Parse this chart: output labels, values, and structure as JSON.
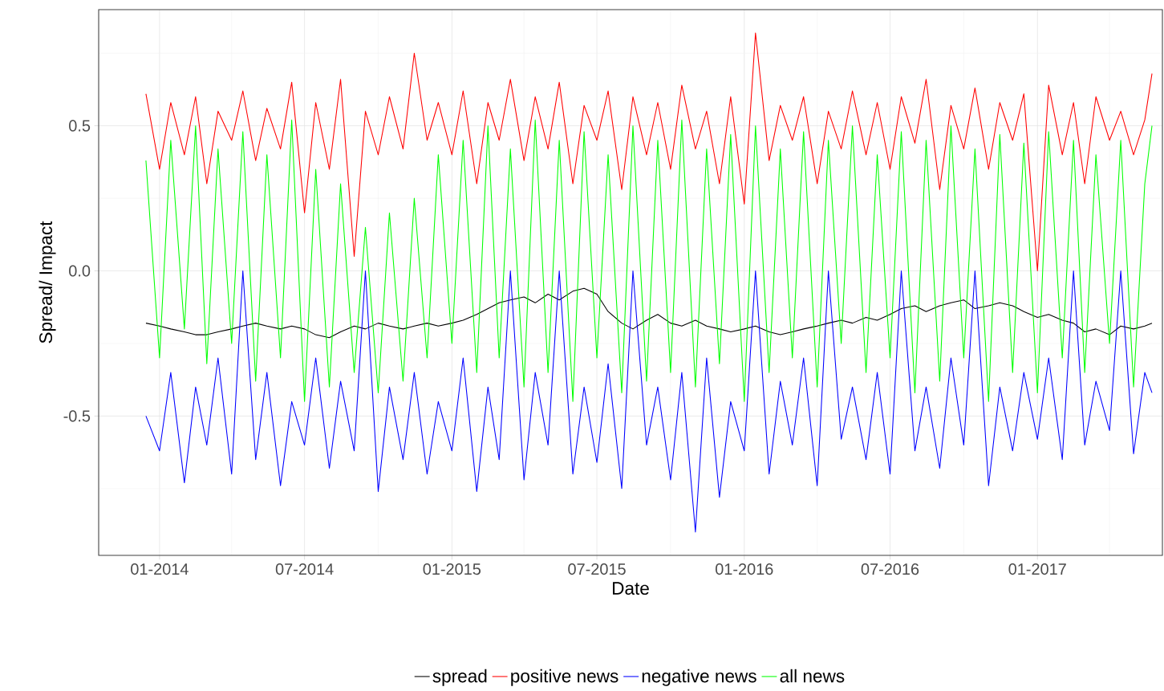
{
  "chart_data": {
    "type": "line",
    "xlabel": "Date",
    "ylabel": "Spread/ Impact",
    "x": [
      "2013-12-15",
      "2014-01-01",
      "2014-01-15",
      "2014-02-01",
      "2014-02-15",
      "2014-03-01",
      "2014-03-15",
      "2014-04-01",
      "2014-04-15",
      "2014-05-01",
      "2014-05-15",
      "2014-06-01",
      "2014-06-15",
      "2014-07-01",
      "2014-07-15",
      "2014-08-01",
      "2014-08-15",
      "2014-09-01",
      "2014-09-15",
      "2014-10-01",
      "2014-10-15",
      "2014-11-01",
      "2014-11-15",
      "2014-12-01",
      "2014-12-15",
      "2015-01-01",
      "2015-01-15",
      "2015-02-01",
      "2015-02-15",
      "2015-03-01",
      "2015-03-15",
      "2015-04-01",
      "2015-04-15",
      "2015-05-01",
      "2015-05-15",
      "2015-06-01",
      "2015-06-15",
      "2015-07-01",
      "2015-07-15",
      "2015-08-01",
      "2015-08-15",
      "2015-09-01",
      "2015-09-15",
      "2015-10-01",
      "2015-10-15",
      "2015-11-01",
      "2015-11-15",
      "2015-12-01",
      "2015-12-15",
      "2016-01-01",
      "2016-01-15",
      "2016-02-01",
      "2016-02-15",
      "2016-03-01",
      "2016-03-15",
      "2016-04-01",
      "2016-04-15",
      "2016-05-01",
      "2016-05-15",
      "2016-06-01",
      "2016-06-15",
      "2016-07-01",
      "2016-07-15",
      "2016-08-01",
      "2016-08-15",
      "2016-09-01",
      "2016-09-15",
      "2016-10-01",
      "2016-10-15",
      "2016-11-01",
      "2016-11-15",
      "2016-12-01",
      "2016-12-15",
      "2017-01-01",
      "2017-01-15",
      "2017-02-01",
      "2017-02-15",
      "2017-03-01",
      "2017-03-15",
      "2017-04-01",
      "2017-04-15",
      "2017-05-01",
      "2017-05-15",
      "2017-05-24"
    ],
    "series": [
      {
        "name": "spread",
        "color": "#000000",
        "values": [
          -0.18,
          -0.19,
          -0.2,
          -0.21,
          -0.22,
          -0.22,
          -0.21,
          -0.2,
          -0.19,
          -0.18,
          -0.19,
          -0.2,
          -0.19,
          -0.2,
          -0.22,
          -0.23,
          -0.21,
          -0.19,
          -0.2,
          -0.18,
          -0.19,
          -0.2,
          -0.19,
          -0.18,
          -0.19,
          -0.18,
          -0.17,
          -0.15,
          -0.13,
          -0.11,
          -0.1,
          -0.09,
          -0.11,
          -0.08,
          -0.1,
          -0.07,
          -0.06,
          -0.08,
          -0.14,
          -0.18,
          -0.2,
          -0.17,
          -0.15,
          -0.18,
          -0.19,
          -0.17,
          -0.19,
          -0.2,
          -0.21,
          -0.2,
          -0.19,
          -0.21,
          -0.22,
          -0.21,
          -0.2,
          -0.19,
          -0.18,
          -0.17,
          -0.18,
          -0.16,
          -0.17,
          -0.15,
          -0.13,
          -0.12,
          -0.14,
          -0.12,
          -0.11,
          -0.1,
          -0.13,
          -0.12,
          -0.11,
          -0.12,
          -0.14,
          -0.16,
          -0.15,
          -0.17,
          -0.18,
          -0.21,
          -0.2,
          -0.22,
          -0.19,
          -0.2,
          -0.19,
          -0.18
        ]
      },
      {
        "name": "positive news",
        "color": "#ff0000",
        "values": [
          0.61,
          0.35,
          0.58,
          0.4,
          0.6,
          0.3,
          0.55,
          0.45,
          0.62,
          0.38,
          0.56,
          0.42,
          0.65,
          0.2,
          0.58,
          0.35,
          0.66,
          0.05,
          0.55,
          0.4,
          0.6,
          0.42,
          0.75,
          0.45,
          0.58,
          0.4,
          0.62,
          0.3,
          0.58,
          0.45,
          0.66,
          0.38,
          0.6,
          0.42,
          0.65,
          0.3,
          0.57,
          0.45,
          0.62,
          0.28,
          0.6,
          0.4,
          0.58,
          0.35,
          0.64,
          0.42,
          0.55,
          0.3,
          0.6,
          0.23,
          0.82,
          0.38,
          0.57,
          0.45,
          0.6,
          0.3,
          0.55,
          0.42,
          0.62,
          0.4,
          0.58,
          0.35,
          0.6,
          0.44,
          0.66,
          0.28,
          0.57,
          0.42,
          0.63,
          0.35,
          0.58,
          0.45,
          0.61,
          0.0,
          0.64,
          0.4,
          0.58,
          0.3,
          0.6,
          0.45,
          0.55,
          0.4,
          0.52,
          0.68
        ]
      },
      {
        "name": "negative news",
        "color": "#0000ff",
        "values": [
          -0.5,
          -0.62,
          -0.35,
          -0.73,
          -0.4,
          -0.6,
          -0.3,
          -0.7,
          0.0,
          -0.65,
          -0.35,
          -0.74,
          -0.45,
          -0.6,
          -0.3,
          -0.68,
          -0.38,
          -0.62,
          0.0,
          -0.76,
          -0.4,
          -0.65,
          -0.35,
          -0.7,
          -0.45,
          -0.62,
          -0.3,
          -0.76,
          -0.4,
          -0.65,
          0.0,
          -0.72,
          -0.35,
          -0.6,
          0.0,
          -0.7,
          -0.4,
          -0.66,
          -0.32,
          -0.75,
          0.0,
          -0.6,
          -0.4,
          -0.72,
          -0.35,
          -0.9,
          -0.3,
          -0.78,
          -0.45,
          -0.62,
          0.0,
          -0.7,
          -0.38,
          -0.6,
          -0.3,
          -0.74,
          0.0,
          -0.58,
          -0.4,
          -0.65,
          -0.35,
          -0.7,
          0.0,
          -0.62,
          -0.4,
          -0.68,
          -0.3,
          -0.6,
          0.0,
          -0.74,
          -0.4,
          -0.62,
          -0.35,
          -0.58,
          -0.3,
          -0.65,
          0.0,
          -0.6,
          -0.38,
          -0.55,
          0.0,
          -0.63,
          -0.35,
          -0.42
        ]
      },
      {
        "name": "all news",
        "color": "#00ff00",
        "values": [
          0.38,
          -0.3,
          0.45,
          -0.2,
          0.5,
          -0.32,
          0.42,
          -0.25,
          0.48,
          -0.38,
          0.4,
          -0.3,
          0.52,
          -0.45,
          0.35,
          -0.4,
          0.3,
          -0.35,
          0.15,
          -0.42,
          0.2,
          -0.38,
          0.25,
          -0.3,
          0.4,
          -0.25,
          0.45,
          -0.35,
          0.5,
          -0.3,
          0.42,
          -0.4,
          0.52,
          -0.35,
          0.45,
          -0.45,
          0.48,
          -0.3,
          0.4,
          -0.42,
          0.5,
          -0.38,
          0.45,
          -0.35,
          0.52,
          -0.4,
          0.42,
          -0.32,
          0.47,
          -0.45,
          0.5,
          -0.35,
          0.42,
          -0.3,
          0.48,
          -0.4,
          0.45,
          -0.25,
          0.5,
          -0.35,
          0.4,
          -0.3,
          0.48,
          -0.42,
          0.45,
          -0.38,
          0.5,
          -0.3,
          0.42,
          -0.45,
          0.47,
          -0.35,
          0.44,
          -0.42,
          0.48,
          -0.3,
          0.45,
          -0.35,
          0.4,
          -0.25,
          0.45,
          -0.4,
          0.3,
          0.5
        ]
      }
    ],
    "xlim": [
      "2013-10-17",
      "2017-06-06"
    ],
    "xticks": [
      {
        "value": "2014-01-01",
        "label": "01-2014"
      },
      {
        "value": "2014-04-01",
        "label": null
      },
      {
        "value": "2014-07-01",
        "label": "07-2014"
      },
      {
        "value": "2014-10-01",
        "label": null
      },
      {
        "value": "2015-01-01",
        "label": "01-2015"
      },
      {
        "value": "2015-04-01",
        "label": null
      },
      {
        "value": "2015-07-01",
        "label": "07-2015"
      },
      {
        "value": "2015-10-01",
        "label": null
      },
      {
        "value": "2016-01-01",
        "label": "01-2016"
      },
      {
        "value": "2016-04-01",
        "label": null
      },
      {
        "value": "2016-07-01",
        "label": "07-2016"
      },
      {
        "value": "2016-10-01",
        "label": null
      },
      {
        "value": "2017-01-01",
        "label": "01-2017"
      },
      {
        "value": "2017-04-01",
        "label": null
      }
    ],
    "ylim": [
      -0.98,
      0.9
    ],
    "yticks": [
      {
        "value": -0.75,
        "label": null
      },
      -0.5,
      {
        "value": -0.25,
        "label": null
      },
      {
        "value": 0,
        "label": "0.0"
      },
      {
        "value": 0.25,
        "label": null
      },
      0.5,
      {
        "value": 0.75,
        "label": null
      }
    ],
    "grid": true,
    "legend": "bottom",
    "line_style": "solid",
    "marker": "none"
  }
}
